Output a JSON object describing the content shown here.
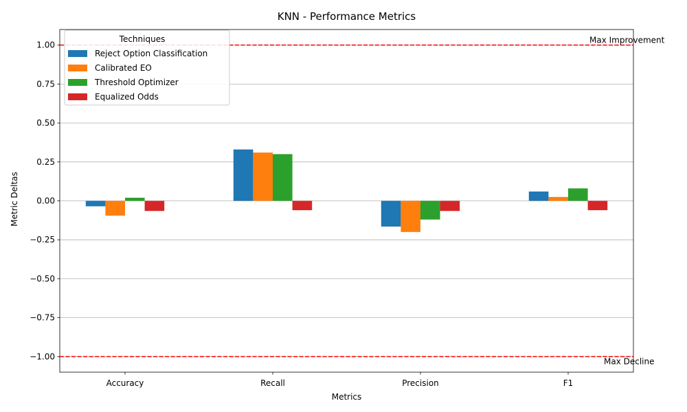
{
  "chart_data": {
    "type": "bar",
    "title": "KNN - Performance Metrics",
    "xlabel": "Metrics",
    "ylabel": "Metric Deltas",
    "categories": [
      "Accuracy",
      "Recall",
      "Precision",
      "F1"
    ],
    "series": [
      {
        "name": "Reject Option Classification",
        "color": "#1f77b4",
        "values": [
          -0.035,
          0.33,
          -0.165,
          0.06
        ]
      },
      {
        "name": "Calibrated EO",
        "color": "#ff7f0e",
        "values": [
          -0.095,
          0.31,
          -0.2,
          0.025
        ]
      },
      {
        "name": "Threshold Optimizer",
        "color": "#2ca02c",
        "values": [
          0.02,
          0.3,
          -0.12,
          0.08
        ]
      },
      {
        "name": "Equalized Odds",
        "color": "#d62728",
        "values": [
          -0.065,
          -0.06,
          -0.065,
          -0.06
        ]
      }
    ],
    "ylim": [
      -1.1,
      1.1
    ],
    "yticks": [
      -1.0,
      -0.75,
      -0.5,
      -0.25,
      0.0,
      0.25,
      0.5,
      0.75,
      1.0
    ],
    "ytick_labels": [
      "−1.00",
      "−0.75",
      "−0.50",
      "−0.25",
      "0.00",
      "0.25",
      "0.50",
      "0.75",
      "1.00"
    ],
    "grid": "y",
    "legend": {
      "title": "Techniques",
      "placement": "top-left"
    },
    "reference_lines": [
      {
        "value": 1.0,
        "label": "Max Improvement",
        "color": "#ff0000",
        "style": "dashed"
      },
      {
        "value": -1.0,
        "label": "Max Decline",
        "color": "#ff0000",
        "style": "dashed"
      }
    ]
  }
}
